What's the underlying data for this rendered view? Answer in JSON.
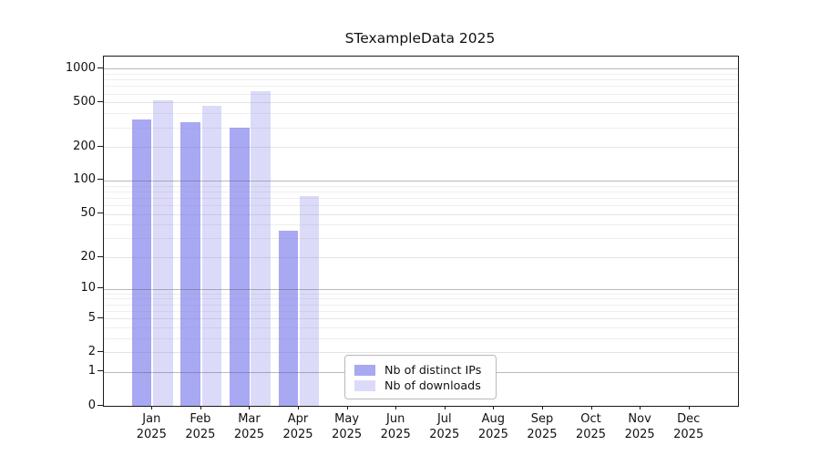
{
  "chart_data": {
    "type": "bar",
    "title": "STexampleData 2025",
    "categories": [
      "Jan",
      "Feb",
      "Mar",
      "Apr",
      "May",
      "Jun",
      "Jul",
      "Aug",
      "Sep",
      "Oct",
      "Nov",
      "Dec"
    ],
    "year_label": "2025",
    "xlabel": "",
    "ylabel": "",
    "y_scale": "log10(value+1)",
    "y_ticks": [
      1000,
      500,
      200,
      100,
      50,
      20,
      10,
      5,
      2,
      1,
      0
    ],
    "ylim": [
      0,
      1280
    ],
    "grid": "horizontal",
    "legend_position": "lower center",
    "series": [
      {
        "name": "Nb of distinct IPs",
        "color": "#a8a8f3",
        "values": [
          355,
          335,
          300,
          35,
          0,
          0,
          0,
          0,
          0,
          0,
          0,
          0
        ]
      },
      {
        "name": "Nb of downloads",
        "color": "#dbdbf9",
        "values": [
          520,
          470,
          630,
          72,
          0,
          0,
          0,
          0,
          0,
          0,
          0,
          0
        ]
      }
    ]
  }
}
